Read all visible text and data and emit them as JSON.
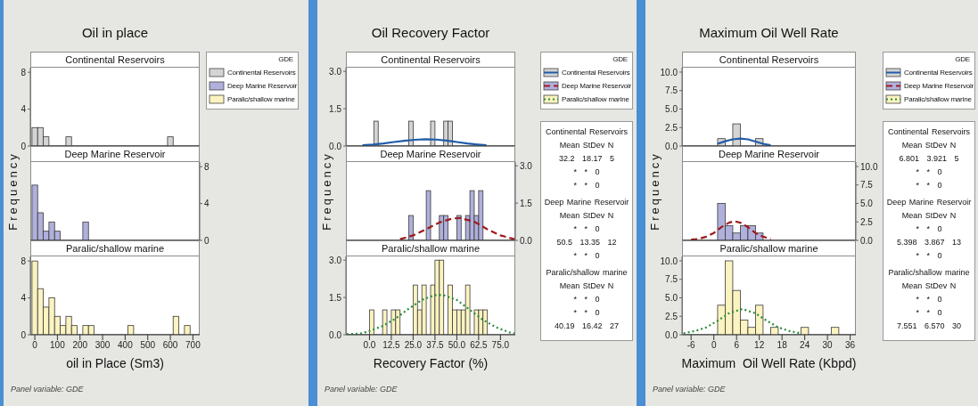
{
  "chart_data": [
    {
      "type": "histogram",
      "title": "Oil in place",
      "subtitle": "Continental Reservoirs",
      "legend": "right",
      "legend_title": "GDE",
      "tick_labels": "y",
      "xlim": [
        -20,
        730
      ],
      "ylim": [
        0,
        8.5
      ],
      "yticks": [
        0,
        4,
        8
      ],
      "bins": [
        -12.5,
        12.5,
        37.5,
        62.5,
        87.5,
        112.5,
        137.5,
        162.5,
        187.5,
        212.5,
        237.5,
        262.5,
        287.5,
        312.5,
        337.5,
        362.5,
        387.5,
        412.5,
        437.5,
        462.5,
        487.5,
        512.5,
        537.5,
        562.5,
        587.5,
        612.5,
        637.5,
        662.5,
        687.5
      ],
      "series": [
        {
          "name": "Continental Reservoirs",
          "color": "#d4d4d4",
          "values": [
            2,
            2,
            1,
            0,
            0,
            0,
            1,
            0,
            0,
            0,
            0,
            0,
            0,
            0,
            0,
            0,
            0,
            0,
            0,
            0,
            0,
            0,
            0,
            0,
            1,
            0,
            0,
            0
          ]
        }
      ]
    },
    {
      "type": "histogram",
      "title": "Deep Marine Reservoir",
      "ylabel": "Frequency",
      "tick_labels": "y",
      "xlim": [
        -20,
        730
      ],
      "y2lim": [
        0,
        8.5
      ],
      "y2ticks": [
        0,
        4,
        8
      ],
      "bins": [
        -12.5,
        12.5,
        37.5,
        62.5,
        87.5,
        112.5,
        137.5,
        162.5,
        187.5,
        212.5,
        237.5,
        262.5,
        287.5,
        312.5,
        337.5,
        362.5,
        387.5,
        412.5,
        437.5,
        462.5,
        487.5,
        512.5,
        537.5,
        562.5,
        587.5,
        612.5,
        637.5,
        662.5,
        687.5
      ],
      "series": [
        {
          "name": "Deep Marine Reservoir",
          "color": "#b0b0dc",
          "axis": "y2",
          "values": [
            6,
            3,
            1,
            2,
            1,
            0,
            0,
            0,
            0,
            2,
            0,
            0,
            0,
            0,
            0,
            0,
            0,
            0,
            0,
            0,
            0,
            0,
            0,
            0,
            0,
            0,
            0,
            0
          ]
        }
      ]
    },
    {
      "type": "histogram",
      "title": "Paralic/shallow marine",
      "xlabel": "oil in Place (Sm3)",
      "annotations": [
        "Panel variable: GDE"
      ],
      "xlim": [
        -20,
        730
      ],
      "xticks": [
        0,
        100,
        200,
        300,
        400,
        500,
        600,
        700
      ],
      "ylim": [
        0,
        8.5
      ],
      "yticks": [
        0,
        4,
        8
      ],
      "bins": [
        -12.5,
        12.5,
        37.5,
        62.5,
        87.5,
        112.5,
        137.5,
        162.5,
        187.5,
        212.5,
        237.5,
        262.5,
        287.5,
        312.5,
        337.5,
        362.5,
        387.5,
        412.5,
        437.5,
        462.5,
        487.5,
        512.5,
        537.5,
        562.5,
        587.5,
        612.5,
        637.5,
        662.5,
        687.5
      ],
      "series": [
        {
          "name": "Paralic/shallow marine",
          "color": "#fbf3c0",
          "values": [
            8,
            5,
            3,
            4,
            2,
            1,
            2,
            1,
            0,
            1,
            1,
            0,
            0,
            0,
            0,
            0,
            0,
            1,
            0,
            0,
            0,
            0,
            0,
            0,
            0,
            2,
            0,
            1
          ]
        }
      ]
    },
    {
      "type": "histogram",
      "title": "Oil Recovery Factor",
      "subtitle": "Continental Reservoirs",
      "legend": "right",
      "legend_title": "GDE",
      "tick_labels": "y",
      "annotations": [
        "Continental Reservoirs",
        "Mean StDev N",
        "32.2 18.17 5",
        "* * 0",
        "* * 0"
      ],
      "xlim": [
        -13.5,
        83.5
      ],
      "ylim": [
        0,
        3.15
      ],
      "yticks": [
        {
          "value": 0,
          "label": "0.0"
        },
        1.5,
        {
          "value": 3,
          "label": "3.0"
        }
      ],
      "bins": [
        0,
        2.5,
        5,
        7.5,
        10,
        12.5,
        15,
        17.5,
        20,
        22.5,
        25,
        27.5,
        30,
        32.5,
        35,
        37.5,
        40,
        42.5,
        45,
        47.5,
        50,
        52.5,
        55,
        57.5,
        60,
        62.5,
        65,
        67.5
      ],
      "series": [
        {
          "name": "Continental Reservoirs",
          "color": "#d4d4d4",
          "values": [
            0,
            1,
            0,
            0,
            0,
            0,
            0,
            0,
            0,
            1,
            0,
            0,
            0,
            0,
            1,
            0,
            0,
            1,
            1,
            0,
            0,
            0,
            0,
            0,
            0,
            0,
            0
          ]
        },
        {
          "type": "line",
          "line_style": "solid",
          "color": "#1f5ca8",
          "x": [
            -4,
            2,
            8,
            14,
            20,
            26,
            32,
            38,
            44,
            50,
            56,
            62,
            67
          ],
          "values": [
            0.03,
            0.06,
            0.1,
            0.16,
            0.21,
            0.25,
            0.27,
            0.26,
            0.22,
            0.16,
            0.1,
            0.06,
            0.03
          ]
        }
      ]
    },
    {
      "type": "histogram",
      "title": "Deep Marine Reservoir",
      "ylabel": "Frequency",
      "tick_labels": "y",
      "annotations": [
        "Deep Marine Reservoir",
        "Mean StDev N",
        "* * 0",
        "50.5 13.35 12",
        "* * 0"
      ],
      "xlim": [
        -13.5,
        83.5
      ],
      "y2lim": [
        0,
        3.15
      ],
      "y2ticks": [
        {
          "value": 0,
          "label": "0.0"
        },
        1.5,
        {
          "value": 3,
          "label": "3.0"
        }
      ],
      "bins": [
        0,
        2.5,
        5,
        7.5,
        10,
        12.5,
        15,
        17.5,
        20,
        22.5,
        25,
        27.5,
        30,
        32.5,
        35,
        37.5,
        40,
        42.5,
        45,
        47.5,
        50,
        52.5,
        55,
        57.5,
        60,
        62.5,
        65,
        67.5
      ],
      "series": [
        {
          "name": "Deep Marine Reservoir",
          "color": "#b0b0dc",
          "axis": "y2",
          "values": [
            0,
            0,
            0,
            0,
            0,
            0,
            0,
            0,
            0,
            1,
            0,
            0,
            0,
            2,
            0,
            0,
            1,
            1,
            0,
            0,
            1,
            0,
            1,
            2,
            1,
            2,
            0
          ]
        },
        {
          "type": "line",
          "line_style": "dashed",
          "color": "#9e1b1e",
          "axis": "y2",
          "x": [
            17.5,
            25,
            32.5,
            40,
            47.5,
            52,
            60,
            67.5,
            75,
            83
          ],
          "values": [
            0.05,
            0.2,
            0.45,
            0.72,
            0.88,
            0.9,
            0.75,
            0.45,
            0.2,
            0.05
          ]
        }
      ]
    },
    {
      "type": "histogram",
      "title": "Paralic/shallow marine",
      "xlabel": "Recovery Factor (%)",
      "annotations": [
        "Paralic/shallow marine",
        "Mean StDev N",
        "* * 0",
        "* * 0",
        "40.19 16.42 27",
        "Panel variable: GDE"
      ],
      "xlim": [
        -13.5,
        83.5
      ],
      "xticks": [
        {
          "value": 0,
          "label": "0.0"
        },
        12.5,
        {
          "value": 25,
          "label": "25.0"
        },
        37.5,
        {
          "value": 50,
          "label": "50.0"
        },
        62.5,
        {
          "value": 75,
          "label": "75.0"
        }
      ],
      "ylim": [
        0,
        3.15
      ],
      "yticks": [
        {
          "value": 0,
          "label": "0.0"
        },
        1.5,
        {
          "value": 3,
          "label": "3.0"
        }
      ],
      "bins": [
        0,
        2.5,
        5,
        7.5,
        10,
        12.5,
        15,
        17.5,
        20,
        22.5,
        25,
        27.5,
        30,
        32.5,
        35,
        37.5,
        40,
        42.5,
        45,
        47.5,
        50,
        52.5,
        55,
        57.5,
        60,
        62.5,
        65,
        67.5
      ],
      "series": [
        {
          "name": "Paralic/shallow marine",
          "color": "#fbf3c0",
          "values": [
            1,
            0,
            0,
            1,
            0,
            1,
            1,
            0,
            0,
            0,
            2,
            1,
            2,
            0,
            2,
            3,
            3,
            0,
            2,
            1,
            1,
            1,
            2,
            0,
            1,
            1,
            1
          ]
        },
        {
          "type": "line",
          "line_style": "dotted",
          "color": "#2b8c3c",
          "x": [
            -13,
            -5,
            0,
            7.5,
            15,
            22.5,
            30,
            37.5,
            42,
            50,
            57.5,
            65,
            72.5,
            80,
            83
          ],
          "values": [
            0.02,
            0.05,
            0.15,
            0.35,
            0.65,
            1.05,
            1.4,
            1.6,
            1.6,
            1.4,
            1.0,
            0.6,
            0.3,
            0.1,
            0.05
          ]
        }
      ]
    },
    {
      "type": "histogram",
      "title": "Maximum Oil Well Rate",
      "subtitle": "Continental Reservoirs",
      "legend": "right",
      "legend_title": "GDE",
      "tick_labels": "y",
      "annotations": [
        "Continental Reservoirs",
        "Mean StDev N",
        "6.801 3.921 5",
        "* * 0",
        "* * 0"
      ],
      "xlim": [
        -8.4,
        37.5
      ],
      "ylim": [
        0,
        10.6
      ],
      "yticks": [
        {
          "value": 0,
          "label": "0.0"
        },
        2.5,
        {
          "value": 5,
          "label": "5.0"
        },
        7.5,
        {
          "value": 10,
          "label": "10.0"
        }
      ],
      "bins": [
        1,
        3,
        5,
        7,
        9,
        11,
        13,
        15,
        17,
        19,
        21,
        23,
        25,
        27,
        29,
        31,
        33
      ],
      "series": [
        {
          "name": "Continental Reservoirs",
          "color": "#d4d4d4",
          "values": [
            1,
            0,
            3,
            0,
            0,
            1,
            0,
            0,
            0,
            0,
            0,
            0,
            0,
            0,
            0,
            0
          ]
        },
        {
          "type": "line",
          "line_style": "solid",
          "color": "#1f5ca8",
          "x": [
            1,
            3,
            5,
            7,
            9,
            11,
            13,
            15
          ],
          "values": [
            0.3,
            0.65,
            0.9,
            1.0,
            0.9,
            0.6,
            0.3,
            0.1
          ]
        }
      ]
    },
    {
      "type": "histogram",
      "title": "Deep Marine Reservoir",
      "ylabel": "Frequency",
      "tick_labels": "y",
      "annotations": [
        "Deep Marine Reservoir",
        "Mean StDev N",
        "* * 0",
        "5.398 3.867 13",
        "* * 0"
      ],
      "xlim": [
        -8.4,
        37.5
      ],
      "y2lim": [
        0,
        10.6
      ],
      "y2ticks": [
        {
          "value": 0,
          "label": "0.0"
        },
        2.5,
        {
          "value": 5,
          "label": "5.0"
        },
        7.5,
        {
          "value": 10,
          "label": "10.0"
        }
      ],
      "bins": [
        1,
        3,
        5,
        7,
        9,
        11,
        13,
        15,
        17,
        19,
        21,
        23,
        25,
        27,
        29,
        31,
        33
      ],
      "series": [
        {
          "name": "Deep Marine Reservoir",
          "color": "#b0b0dc",
          "axis": "y2",
          "values": [
            5,
            2,
            1,
            2,
            2,
            1,
            0,
            0,
            0,
            0,
            0,
            0,
            0,
            0,
            0,
            0
          ]
        },
        {
          "type": "line",
          "line_style": "dashed",
          "color": "#9e1b1e",
          "axis": "y2",
          "x": [
            -6,
            -4,
            -2,
            0,
            2,
            4,
            5.4,
            7,
            9,
            11,
            13,
            15
          ],
          "values": [
            0.1,
            0.2,
            0.5,
            1.0,
            1.8,
            2.4,
            2.6,
            2.4,
            1.8,
            1.0,
            0.5,
            0.2
          ]
        }
      ]
    },
    {
      "type": "histogram",
      "title": "Paralic/shallow marine",
      "xlabel": "Maximum  Oil Well Rate (Kbpd)",
      "annotations": [
        "Paralic/shallow marine",
        "Mean StDev N",
        "* * 0",
        "* * 0",
        "7.551 6.570 30",
        "Panel variable: GDE"
      ],
      "xlim": [
        -8.4,
        37.5
      ],
      "xticks": [
        -6,
        0,
        6,
        12,
        18,
        24,
        30,
        36
      ],
      "ylim": [
        0,
        10.6
      ],
      "yticks": [
        {
          "value": 0,
          "label": "0.0"
        },
        2.5,
        {
          "value": 5,
          "label": "5.0"
        },
        7.5,
        {
          "value": 10,
          "label": "10.0"
        }
      ],
      "bins": [
        1,
        3,
        5,
        7,
        9,
        11,
        13,
        15,
        17,
        19,
        21,
        23,
        25,
        27,
        29,
        31,
        33
      ],
      "series": [
        {
          "name": "Paralic/shallow marine",
          "color": "#fbf3c0",
          "values": [
            4,
            10,
            6,
            2,
            1,
            4,
            0,
            1,
            0,
            0,
            0,
            1,
            0,
            0,
            0,
            1
          ]
        },
        {
          "type": "line",
          "line_style": "dotted",
          "color": "#2b8c3c",
          "x": [
            -8,
            -5,
            -2,
            1,
            4,
            7.5,
            11,
            14,
            17,
            20,
            23
          ],
          "values": [
            0.2,
            0.5,
            1.0,
            1.9,
            2.9,
            3.5,
            2.9,
            1.9,
            1.0,
            0.5,
            0.2
          ]
        }
      ]
    }
  ]
}
